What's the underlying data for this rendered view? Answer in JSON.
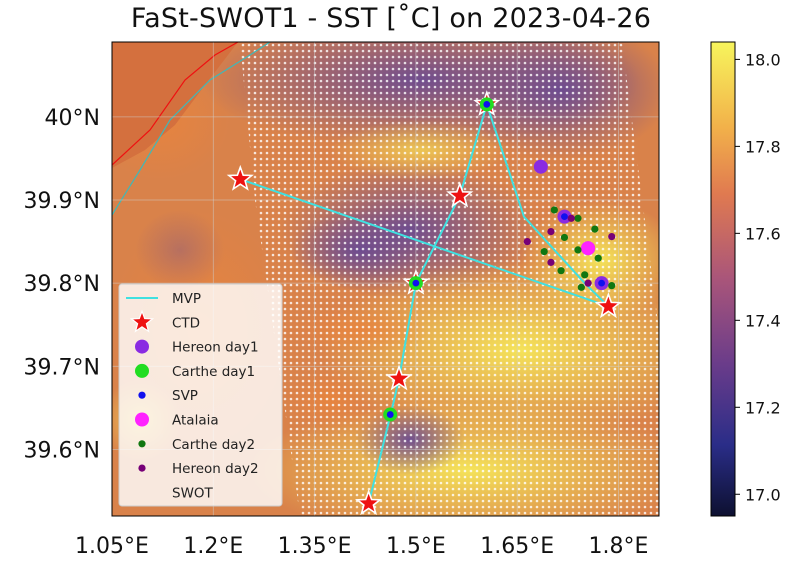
{
  "title": "FaSt-SWOT1 - SST [˚C] on 2023-04-26",
  "axes": {
    "lon_ticks": [
      "1.05°E",
      "1.2°E",
      "1.35°E",
      "1.5°E",
      "1.65°E",
      "1.8°E"
    ],
    "lon_tick_values": [
      1.05,
      1.2,
      1.35,
      1.5,
      1.65,
      1.8
    ],
    "lat_ticks": [
      "40°N",
      "39.9°N",
      "39.8°N",
      "39.7°N",
      "39.6°N"
    ],
    "lat_tick_values": [
      40.0,
      39.9,
      39.8,
      39.7,
      39.6
    ],
    "lon_range": [
      1.05,
      1.86
    ],
    "lat_range": [
      39.52,
      40.09
    ]
  },
  "colorbar": {
    "ticks": [
      "18.0",
      "17.8",
      "17.6",
      "17.4",
      "17.2",
      "17.0"
    ],
    "tick_values": [
      18.0,
      17.8,
      17.6,
      17.4,
      17.2,
      17.0
    ],
    "range": [
      16.95,
      18.04
    ],
    "colormap": "plasma-like (dark navy → purple → orange → yellow)"
  },
  "legend": {
    "items": [
      {
        "label": "MVP",
        "symbol": "line",
        "color": "#3fe0e0"
      },
      {
        "label": "CTD",
        "symbol": "star",
        "color": "#ee1111"
      },
      {
        "label": "Hereon day1",
        "symbol": "circle-large",
        "color": "#8a2be2"
      },
      {
        "label": "Carthe day1",
        "symbol": "circle-large",
        "color": "#22dd22"
      },
      {
        "label": "SVP",
        "symbol": "circle-small",
        "color": "#1010ee"
      },
      {
        "label": "Atalaia",
        "symbol": "circle-large",
        "color": "#ff22ff"
      },
      {
        "label": "Carthe day2",
        "symbol": "circle-small",
        "color": "#117711"
      },
      {
        "label": "Hereon day2",
        "symbol": "circle-small",
        "color": "#770077"
      },
      {
        "label": "SWOT",
        "symbol": "dots-white",
        "color": "#ffffff"
      }
    ]
  },
  "chart_data": {
    "type": "map",
    "mvp_transect": {
      "color": "#3fe0e0",
      "points": [
        [
          1.24,
          39.925
        ],
        [
          1.785,
          39.772
        ]
      ]
    },
    "ship_track": {
      "color": "#3fe0e0",
      "points": [
        [
          1.43,
          39.535
        ],
        [
          1.465,
          39.65
        ],
        [
          1.475,
          39.685
        ],
        [
          1.5,
          39.8
        ],
        [
          1.565,
          39.905
        ],
        [
          1.605,
          40.015
        ],
        [
          1.66,
          39.88
        ],
        [
          1.75,
          39.8
        ],
        [
          1.785,
          39.772
        ]
      ]
    },
    "ctd_stations": [
      [
        1.605,
        40.015
      ],
      [
        1.24,
        39.925
      ],
      [
        1.565,
        39.905
      ],
      [
        1.5,
        39.8
      ],
      [
        1.785,
        39.772
      ],
      [
        1.475,
        39.685
      ],
      [
        1.43,
        39.535
      ]
    ],
    "hereon_day1": [
      [
        1.685,
        39.94
      ],
      [
        1.72,
        39.88
      ],
      [
        1.755,
        39.842
      ],
      [
        1.775,
        39.8
      ]
    ],
    "carthe_day1": [
      [
        1.605,
        40.015
      ],
      [
        1.5,
        39.8
      ],
      [
        1.462,
        39.642
      ]
    ],
    "svp": [
      [
        1.605,
        40.015
      ],
      [
        1.72,
        39.88
      ],
      [
        1.5,
        39.8
      ],
      [
        1.462,
        39.642
      ],
      [
        1.775,
        39.8
      ]
    ],
    "atalaia": [
      [
        1.755,
        39.842
      ]
    ],
    "carthe_day2": [
      [
        1.705,
        39.888
      ],
      [
        1.74,
        39.878
      ],
      [
        1.765,
        39.865
      ],
      [
        1.72,
        39.855
      ],
      [
        1.69,
        39.838
      ],
      [
        1.74,
        39.84
      ],
      [
        1.77,
        39.83
      ],
      [
        1.715,
        39.815
      ],
      [
        1.75,
        39.81
      ],
      [
        1.79,
        39.797
      ],
      [
        1.745,
        39.795
      ]
    ],
    "hereon_day2": [
      [
        1.665,
        39.85
      ],
      [
        1.73,
        39.878
      ],
      [
        1.7,
        39.862
      ],
      [
        1.79,
        39.856
      ],
      [
        1.7,
        39.825
      ],
      [
        1.755,
        39.8
      ]
    ],
    "sst_range": [
      17.0,
      18.0
    ]
  }
}
